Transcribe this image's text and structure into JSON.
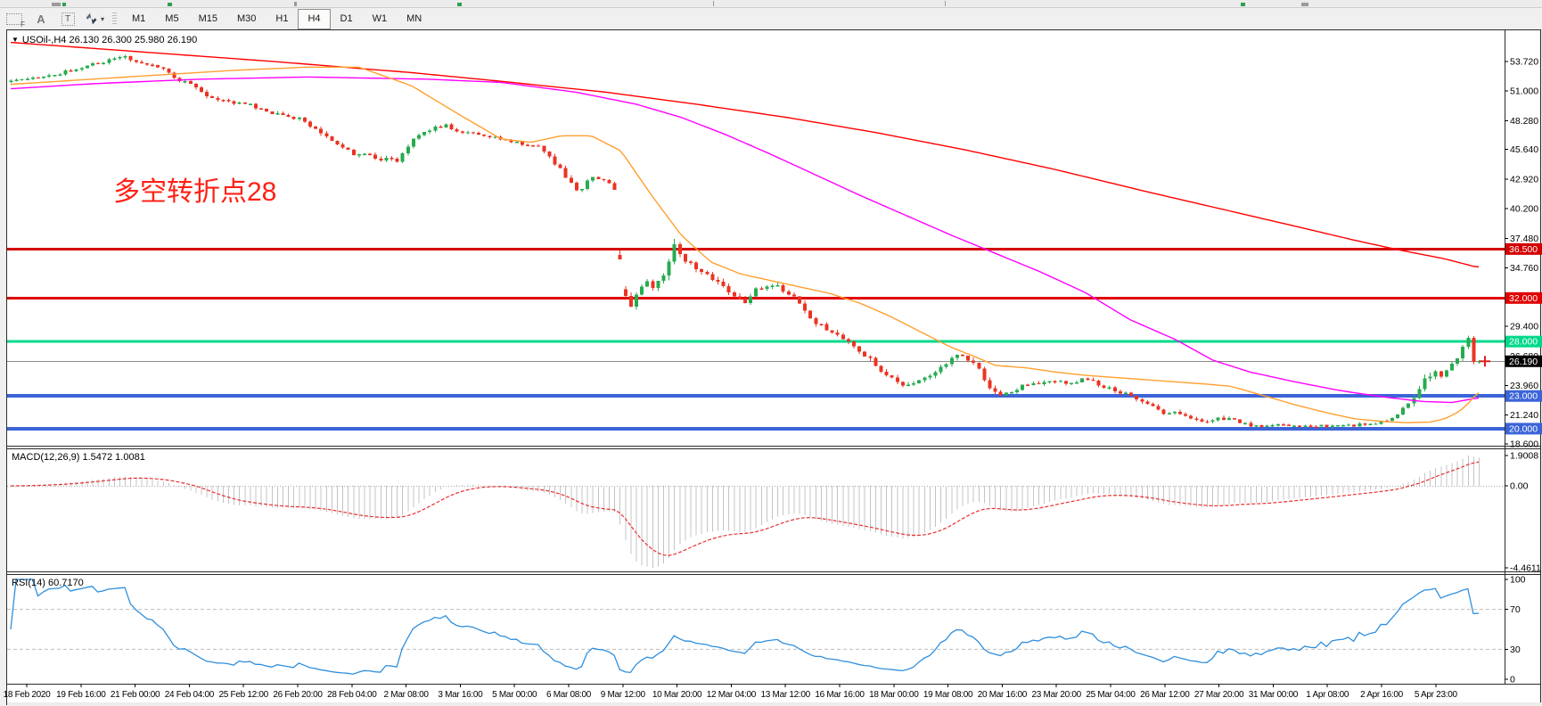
{
  "toolbar": {
    "tools": [
      {
        "name": "drawing-tool-f",
        "glyph": "F"
      },
      {
        "name": "text-tool",
        "glyph": "A"
      },
      {
        "name": "label-tool",
        "glyph": "T"
      },
      {
        "name": "arrow-objects-tool",
        "glyph": "▾"
      }
    ],
    "timeframes": [
      "M1",
      "M5",
      "M15",
      "M30",
      "H1",
      "H4",
      "D1",
      "W1",
      "MN"
    ],
    "active_timeframe": "H4"
  },
  "header": {
    "title_arrow": "▼",
    "title": "USOil-,H4  26.130 26.300 25.980 26.190"
  },
  "annotation": {
    "text": "多空转折点28",
    "color": "#ff2015"
  },
  "indicator_labels": {
    "macd": "MACD(12,26,9) 1.5472 1.0081",
    "rsi": "RSI(14) 60.7170"
  },
  "chart_data": {
    "type": "candlestick",
    "symbol": "USOil-",
    "period": "H4",
    "current_bar": {
      "open": 26.13,
      "high": 26.3,
      "low": 25.98,
      "close": 26.19
    },
    "current_price": {
      "label": "26.190",
      "price": 26.19,
      "line_color": "#8a8a8a",
      "tag_bg": "#000000"
    },
    "candle_up_color": "#27ab50",
    "candle_down_color": "#ea3423",
    "price_axis_ticks": [
      53.72,
      51.0,
      48.28,
      45.64,
      42.92,
      40.2,
      37.48,
      34.76,
      29.4,
      26.68,
      23.96,
      21.24,
      18.6
    ],
    "price_axis_range": [
      18.5,
      56.6
    ],
    "horizontal_lines": [
      {
        "label": "36.500",
        "price": 36.5,
        "color": "#d40000",
        "width": 3
      },
      {
        "label": "32.000",
        "price": 32.0,
        "color": "#e00000",
        "width": 3
      },
      {
        "label": "28.000",
        "price": 28.0,
        "color": "#00d98a",
        "width": 3
      },
      {
        "label": "23.000",
        "price": 23.0,
        "color": "#3c64d8",
        "width": 4
      },
      {
        "label": "20.000",
        "price": 20.0,
        "color": "#3c64d8",
        "width": 4
      }
    ],
    "bars": 271,
    "close_path": [
      [
        0.0,
        51.9,
        0.3
      ],
      [
        0.013,
        52.1,
        0.3
      ],
      [
        0.031,
        52.5,
        0.32
      ],
      [
        0.049,
        53.2,
        0.32
      ],
      [
        0.07,
        53.9,
        0.35
      ],
      [
        0.079,
        54.2,
        0.38
      ],
      [
        0.086,
        53.7,
        0.32
      ],
      [
        0.102,
        53.1,
        0.3
      ],
      [
        0.122,
        51.5,
        0.42
      ],
      [
        0.141,
        50.1,
        0.38
      ],
      [
        0.158,
        49.9,
        0.32
      ],
      [
        0.177,
        49.0,
        0.36
      ],
      [
        0.194,
        48.5,
        0.36
      ],
      [
        0.212,
        46.9,
        0.46
      ],
      [
        0.23,
        45.3,
        0.52
      ],
      [
        0.248,
        44.8,
        0.46
      ],
      [
        0.26,
        44.5,
        0.42
      ],
      [
        0.267,
        46.0,
        0.46
      ],
      [
        0.281,
        47.5,
        0.42
      ],
      [
        0.293,
        47.9,
        0.36
      ],
      [
        0.303,
        47.2,
        0.36
      ],
      [
        0.32,
        46.9,
        0.3
      ],
      [
        0.339,
        46.3,
        0.3
      ],
      [
        0.355,
        45.9,
        0.32
      ],
      [
        0.365,
        44.5,
        0.46
      ],
      [
        0.375,
        42.8,
        0.5
      ],
      [
        0.382,
        41.5,
        0.42
      ],
      [
        0.389,
        43.0,
        0.36
      ],
      [
        0.395,
        42.9,
        0.3
      ],
      [
        0.405,
        42.5,
        0.3
      ],
      [
        0.409,
        35.8,
        0.95
      ],
      [
        0.414,
        31.2,
        1.05
      ],
      [
        0.419,
        31.8,
        0.92
      ],
      [
        0.425,
        33.4,
        0.85
      ],
      [
        0.432,
        33.1,
        0.72
      ],
      [
        0.439,
        34.6,
        0.82
      ],
      [
        0.445,
        36.6,
        1.2
      ],
      [
        0.449,
        35.9,
        0.75
      ],
      [
        0.457,
        35.0,
        0.62
      ],
      [
        0.465,
        34.1,
        0.6
      ],
      [
        0.474,
        33.7,
        0.52
      ],
      [
        0.484,
        32.3,
        0.62
      ],
      [
        0.492,
        31.5,
        0.62
      ],
      [
        0.501,
        32.9,
        0.52
      ],
      [
        0.51,
        33.4,
        0.52
      ],
      [
        0.52,
        32.5,
        0.52
      ],
      [
        0.528,
        31.8,
        0.46
      ],
      [
        0.537,
        30.1,
        0.52
      ],
      [
        0.546,
        29.1,
        0.52
      ],
      [
        0.556,
        28.5,
        0.46
      ],
      [
        0.565,
        27.5,
        0.46
      ],
      [
        0.576,
        26.3,
        0.52
      ],
      [
        0.585,
        25.2,
        0.52
      ],
      [
        0.593,
        24.2,
        0.52
      ],
      [
        0.602,
        23.9,
        0.5
      ],
      [
        0.611,
        24.6,
        0.46
      ],
      [
        0.62,
        25.3,
        0.46
      ],
      [
        0.629,
        26.3,
        0.52
      ],
      [
        0.638,
        26.9,
        0.52
      ],
      [
        0.647,
        25.8,
        0.52
      ],
      [
        0.657,
        23.6,
        0.56
      ],
      [
        0.667,
        23.1,
        0.5
      ],
      [
        0.676,
        23.9,
        0.42
      ],
      [
        0.685,
        24.3,
        0.4
      ],
      [
        0.693,
        24.1,
        0.36
      ],
      [
        0.702,
        24.4,
        0.36
      ],
      [
        0.711,
        24.2,
        0.36
      ],
      [
        0.72,
        24.6,
        0.36
      ],
      [
        0.729,
        24.0,
        0.36
      ],
      [
        0.738,
        23.6,
        0.36
      ],
      [
        0.747,
        23.2,
        0.36
      ],
      [
        0.756,
        22.7,
        0.36
      ],
      [
        0.765,
        22.0,
        0.4
      ],
      [
        0.774,
        21.3,
        0.4
      ],
      [
        0.783,
        21.5,
        0.36
      ],
      [
        0.792,
        20.9,
        0.36
      ],
      [
        0.801,
        20.5,
        0.34
      ],
      [
        0.81,
        21.0,
        0.34
      ],
      [
        0.818,
        20.8,
        0.34
      ],
      [
        0.827,
        20.4,
        0.3
      ],
      [
        0.836,
        20.2,
        0.26
      ],
      [
        0.845,
        20.4,
        0.26
      ],
      [
        0.854,
        20.3,
        0.26
      ],
      [
        0.863,
        20.1,
        0.26
      ],
      [
        0.872,
        20.3,
        0.26
      ],
      [
        0.881,
        20.2,
        0.26
      ],
      [
        0.89,
        20.4,
        0.26
      ],
      [
        0.899,
        20.3,
        0.26
      ],
      [
        0.908,
        20.5,
        0.26
      ],
      [
        0.917,
        20.6,
        0.3
      ],
      [
        0.924,
        20.9,
        0.36
      ],
      [
        0.931,
        21.6,
        0.48
      ],
      [
        0.938,
        22.6,
        0.62
      ],
      [
        0.945,
        24.3,
        0.82
      ],
      [
        0.952,
        25.2,
        0.72
      ],
      [
        0.958,
        25.0,
        0.52
      ],
      [
        0.963,
        25.6,
        0.52
      ],
      [
        0.968,
        26.6,
        0.62
      ],
      [
        0.972,
        27.6,
        0.62
      ],
      [
        0.975,
        28.4,
        0.52
      ],
      [
        0.9786,
        28.5,
        0.42
      ],
      [
        0.981,
        26.19,
        0.2
      ]
    ],
    "moving_averages": [
      {
        "name": "slow-ma",
        "color": "#ff0000",
        "points": [
          [
            0,
            55.5
          ],
          [
            0.09,
            54.6
          ],
          [
            0.18,
            53.7
          ],
          [
            0.27,
            52.7
          ],
          [
            0.33,
            51.9
          ],
          [
            0.4,
            50.9
          ],
          [
            0.46,
            49.8
          ],
          [
            0.52,
            48.6
          ],
          [
            0.58,
            47.2
          ],
          [
            0.64,
            45.6
          ],
          [
            0.7,
            43.8
          ],
          [
            0.76,
            41.8
          ],
          [
            0.81,
            40.2
          ],
          [
            0.86,
            38.6
          ],
          [
            0.9,
            37.3
          ],
          [
            0.93,
            36.4
          ],
          [
            0.96,
            35.6
          ],
          [
            0.981,
            34.85
          ]
        ]
      },
      {
        "name": "medium-ma",
        "color": "#ff00ff",
        "points": [
          [
            0,
            51.2
          ],
          [
            0.06,
            51.7
          ],
          [
            0.13,
            52.1
          ],
          [
            0.2,
            52.3
          ],
          [
            0.28,
            52.1
          ],
          [
            0.33,
            51.8
          ],
          [
            0.38,
            50.9
          ],
          [
            0.42,
            49.8
          ],
          [
            0.45,
            48.6
          ],
          [
            0.48,
            47.0
          ],
          [
            0.51,
            45.2
          ],
          [
            0.54,
            43.3
          ],
          [
            0.57,
            41.4
          ],
          [
            0.6,
            39.6
          ],
          [
            0.63,
            37.8
          ],
          [
            0.66,
            36.1
          ],
          [
            0.69,
            34.4
          ],
          [
            0.72,
            32.5
          ],
          [
            0.75,
            30.0
          ],
          [
            0.78,
            28.2
          ],
          [
            0.805,
            26.3
          ],
          [
            0.83,
            25.2
          ],
          [
            0.86,
            24.3
          ],
          [
            0.89,
            23.5
          ],
          [
            0.92,
            22.9
          ],
          [
            0.945,
            22.5
          ],
          [
            0.965,
            22.4
          ],
          [
            0.981,
            22.8
          ]
        ]
      },
      {
        "name": "fast-ma",
        "color": "#ffa030",
        "points": [
          [
            0,
            51.6
          ],
          [
            0.08,
            52.3
          ],
          [
            0.15,
            52.9
          ],
          [
            0.2,
            53.2
          ],
          [
            0.235,
            53.2
          ],
          [
            0.27,
            51.5
          ],
          [
            0.3,
            49.0
          ],
          [
            0.33,
            46.6
          ],
          [
            0.35,
            46.3
          ],
          [
            0.37,
            46.9
          ],
          [
            0.39,
            46.9
          ],
          [
            0.41,
            45.5
          ],
          [
            0.43,
            41.5
          ],
          [
            0.45,
            37.8
          ],
          [
            0.47,
            35.3
          ],
          [
            0.49,
            34.2
          ],
          [
            0.51,
            33.6
          ],
          [
            0.53,
            33.0
          ],
          [
            0.55,
            32.4
          ],
          [
            0.57,
            31.5
          ],
          [
            0.59,
            30.3
          ],
          [
            0.61,
            28.9
          ],
          [
            0.63,
            27.5
          ],
          [
            0.65,
            26.4
          ],
          [
            0.66,
            25.8
          ],
          [
            0.68,
            25.6
          ],
          [
            0.7,
            25.2
          ],
          [
            0.72,
            24.9
          ],
          [
            0.75,
            24.6
          ],
          [
            0.78,
            24.3
          ],
          [
            0.8,
            24.1
          ],
          [
            0.817,
            23.9
          ],
          [
            0.84,
            23.0
          ],
          [
            0.86,
            22.2
          ],
          [
            0.88,
            21.5
          ],
          [
            0.9,
            20.9
          ],
          [
            0.92,
            20.65
          ],
          [
            0.935,
            20.55
          ],
          [
            0.95,
            20.6
          ],
          [
            0.96,
            20.9
          ],
          [
            0.97,
            21.6
          ],
          [
            0.978,
            22.6
          ],
          [
            0.981,
            23.3
          ]
        ]
      }
    ],
    "macd": {
      "label": "MACD(12,26,9)",
      "params": [
        12,
        26,
        9
      ],
      "values": [
        1.5472,
        1.0081
      ],
      "axis_labels": [
        "1.9008",
        "0.00",
        "-4.4611"
      ],
      "axis_values": [
        1.9008,
        0.0,
        -4.4611
      ],
      "histogram_color": "#c4c4c4",
      "signal_color": "#e83030"
    },
    "rsi": {
      "label": "RSI(14)",
      "period": 14,
      "value": 60.717,
      "levels": [
        70,
        30
      ],
      "axis_labels": [
        "100",
        "70",
        "30",
        "0"
      ],
      "line_color": "#2f8fde",
      "level_color": "#bfbfbf"
    },
    "time_axis_labels": [
      "18 Feb 2020",
      "19 Feb 16:00",
      "21 Feb 00:00",
      "24 Feb 04:00",
      "25 Feb 12:00",
      "26 Feb 20:00",
      "28 Feb 04:00",
      "2 Mar 08:00",
      "3 Mar 16:00",
      "5 Mar 00:00",
      "6 Mar 08:00",
      "9 Mar 12:00",
      "10 Mar 20:00",
      "12 Mar 04:00",
      "13 Mar 12:00",
      "16 Mar 16:00",
      "18 Mar 00:00",
      "19 Mar 08:00",
      "20 Mar 16:00",
      "23 Mar 20:00",
      "25 Mar 04:00",
      "26 Mar 12:00",
      "27 Mar 20:00",
      "31 Mar 00:00",
      "1 Apr 08:00",
      "2 Apr 16:00",
      "5 Apr 23:00"
    ]
  }
}
